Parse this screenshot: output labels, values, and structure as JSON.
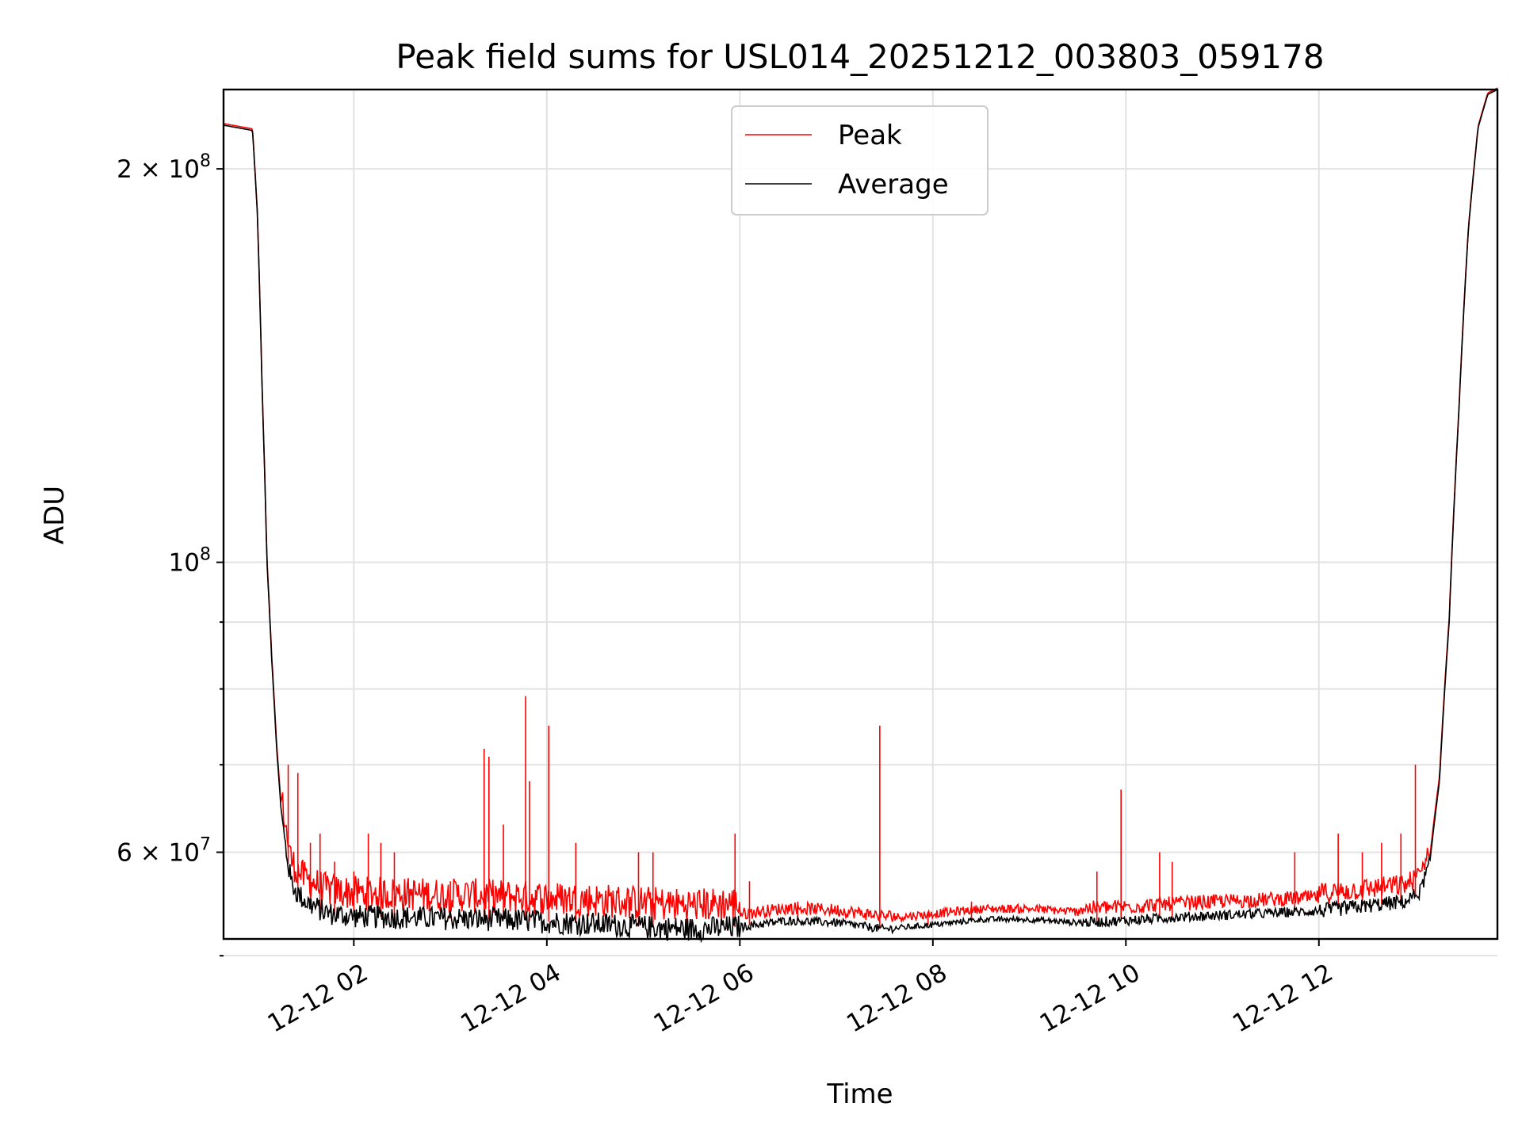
{
  "chart_data": {
    "type": "line",
    "title": "Peak field sums for USL014_20251212_003803_059178",
    "xlabel": "Time",
    "ylabel": "ADU",
    "yscale": "log",
    "xlim_hours": [
      0.65,
      13.85
    ],
    "ylim": [
      51500000,
      230000000
    ],
    "x_tick_values_hours": [
      2,
      4,
      6,
      8,
      10,
      12
    ],
    "x_tick_labels": [
      "12-12 02",
      "12-12 04",
      "12-12 06",
      "12-12 08",
      "12-12 10",
      "12-12 12"
    ],
    "y_major_ticks": [
      {
        "value": 200000000,
        "label_base": "2 × 10",
        "label_exp": "8"
      },
      {
        "value": 100000000,
        "label_base": "10",
        "label_exp": "8"
      },
      {
        "value": 60000000,
        "label_base": "6 × 10",
        "label_exp": "7"
      }
    ],
    "y_minor_ticks": [
      90000000,
      80000000,
      70000000,
      50000000
    ],
    "legend": {
      "location": "upper center",
      "entries": [
        "Peak",
        "Average"
      ]
    },
    "series": [
      {
        "name": "Average",
        "color": "#000000",
        "x_hours": [
          0.65,
          0.95,
          1.0,
          1.05,
          1.1,
          1.15,
          1.2,
          1.25,
          1.3,
          1.35,
          1.4,
          1.45,
          1.5,
          1.6,
          1.7,
          1.8,
          2.0,
          2.5,
          3.0,
          3.5,
          4.0,
          4.5,
          5.0,
          5.5,
          6.0,
          6.5,
          7.0,
          7.5,
          8.0,
          8.5,
          9.0,
          9.5,
          10.0,
          10.5,
          11.0,
          11.5,
          12.0,
          12.5,
          12.9,
          13.05,
          13.15,
          13.25,
          13.35,
          13.45,
          13.55,
          13.65,
          13.75,
          13.85
        ],
        "values_mil": [
          216,
          214,
          185,
          135,
          100,
          84,
          72,
          64,
          60,
          57,
          56,
          55.5,
          55,
          54.5,
          54,
          53.8,
          53.6,
          53.5,
          53.4,
          53.3,
          53.1,
          52.9,
          52.6,
          52.4,
          52.6,
          53.2,
          53.0,
          52.4,
          52.8,
          53.3,
          53.3,
          53.0,
          53.2,
          53.5,
          53.7,
          53.9,
          54.1,
          54.6,
          55.0,
          56,
          59,
          68,
          90,
          130,
          180,
          215,
          228,
          230
        ]
      },
      {
        "name": "Peak",
        "color": "#ff0000",
        "base_offset_mil": 0.6,
        "spikes": [
          {
            "x_hours": 1.32,
            "value_mil": 70
          },
          {
            "x_hours": 1.42,
            "value_mil": 69
          },
          {
            "x_hours": 1.55,
            "value_mil": 61
          },
          {
            "x_hours": 1.65,
            "value_mil": 62
          },
          {
            "x_hours": 1.8,
            "value_mil": 59
          },
          {
            "x_hours": 2.0,
            "value_mil": 58
          },
          {
            "x_hours": 2.15,
            "value_mil": 62
          },
          {
            "x_hours": 2.28,
            "value_mil": 61
          },
          {
            "x_hours": 2.42,
            "value_mil": 60
          },
          {
            "x_hours": 3.0,
            "value_mil": 57
          },
          {
            "x_hours": 3.35,
            "value_mil": 72
          },
          {
            "x_hours": 3.4,
            "value_mil": 71
          },
          {
            "x_hours": 3.55,
            "value_mil": 63
          },
          {
            "x_hours": 3.78,
            "value_mil": 79
          },
          {
            "x_hours": 3.82,
            "value_mil": 68
          },
          {
            "x_hours": 4.02,
            "value_mil": 75
          },
          {
            "x_hours": 4.3,
            "value_mil": 61
          },
          {
            "x_hours": 4.95,
            "value_mil": 60
          },
          {
            "x_hours": 5.1,
            "value_mil": 60
          },
          {
            "x_hours": 5.95,
            "value_mil": 62
          },
          {
            "x_hours": 6.1,
            "value_mil": 57
          },
          {
            "x_hours": 6.6,
            "value_mil": 55
          },
          {
            "x_hours": 7.45,
            "value_mil": 75
          },
          {
            "x_hours": 7.95,
            "value_mil": 54
          },
          {
            "x_hours": 8.4,
            "value_mil": 55
          },
          {
            "x_hours": 9.7,
            "value_mil": 58
          },
          {
            "x_hours": 9.95,
            "value_mil": 67
          },
          {
            "x_hours": 10.35,
            "value_mil": 60
          },
          {
            "x_hours": 10.48,
            "value_mil": 59
          },
          {
            "x_hours": 11.75,
            "value_mil": 60
          },
          {
            "x_hours": 12.2,
            "value_mil": 62
          },
          {
            "x_hours": 12.45,
            "value_mil": 60
          },
          {
            "x_hours": 12.65,
            "value_mil": 61
          },
          {
            "x_hours": 12.85,
            "value_mil": 62
          },
          {
            "x_hours": 13.0,
            "value_mil": 70
          }
        ]
      }
    ]
  }
}
